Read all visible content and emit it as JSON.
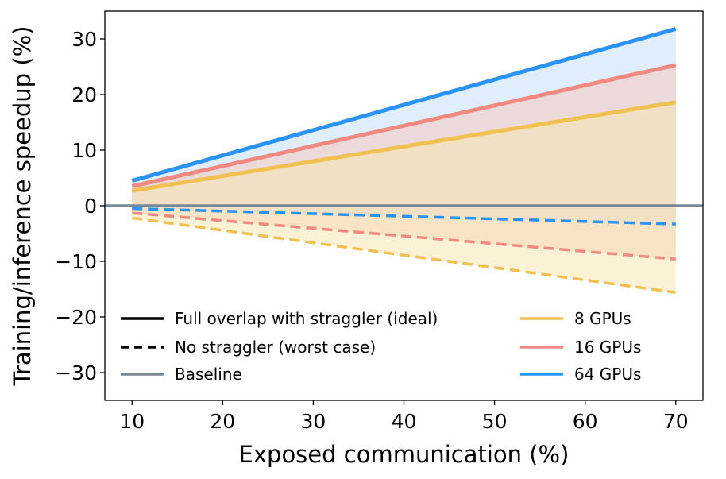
{
  "chart_data": {
    "type": "line",
    "title": "",
    "xlabel": "Exposed communication (%)",
    "ylabel": "Training/inference speedup (%)",
    "xlim": [
      7,
      73
    ],
    "ylim": [
      -35,
      35
    ],
    "x": [
      10,
      70
    ],
    "xticks": [
      10,
      20,
      30,
      40,
      50,
      60,
      70
    ],
    "yticks": [
      -30,
      -20,
      -10,
      0,
      10,
      20,
      30
    ],
    "ytick_labels": [
      "−30",
      "−20",
      "−10",
      "0",
      "10",
      "20",
      "30"
    ],
    "grid": false,
    "legend_position": "lower-center",
    "series": [
      {
        "name": "8 GPUs",
        "style": "solid",
        "color": "#f0c050",
        "fill": "#f7e6b3",
        "values": [
          2.7,
          18.6
        ]
      },
      {
        "name": "16 GPUs",
        "style": "solid",
        "color": "#f08a80",
        "fill": "#f5c8c0",
        "values": [
          3.5,
          25.3
        ]
      },
      {
        "name": "64 GPUs",
        "style": "solid",
        "color": "#2a93f5",
        "fill": "#c6def7",
        "values": [
          4.5,
          31.8
        ]
      },
      {
        "name": "8 GPUs",
        "style": "dashed",
        "color": "#f0c050",
        "fill": "#f7e6b3",
        "values": [
          -2.2,
          -15.6
        ]
      },
      {
        "name": "16 GPUs",
        "style": "dashed",
        "color": "#f08a80",
        "fill": "#f5c8c0",
        "values": [
          -1.3,
          -9.6
        ]
      },
      {
        "name": "64 GPUs",
        "style": "dashed",
        "color": "#2a93f5",
        "fill": "#c6def7",
        "values": [
          -0.5,
          -3.3
        ]
      }
    ],
    "baseline": {
      "value": 0,
      "color": "#778899"
    },
    "legend": [
      {
        "label": "Full overlap with straggler (ideal)",
        "style": "solid",
        "color": "#000000"
      },
      {
        "label": "No straggler (worst case)",
        "style": "dashed",
        "color": "#000000"
      },
      {
        "label": "Baseline",
        "style": "solid",
        "color": "#778899"
      },
      {
        "label": "8 GPUs",
        "style": "solid",
        "color": "#f0c050"
      },
      {
        "label": "16 GPUs",
        "style": "solid",
        "color": "#f08a80"
      },
      {
        "label": "64 GPUs",
        "style": "solid",
        "color": "#2a93f5"
      }
    ]
  }
}
